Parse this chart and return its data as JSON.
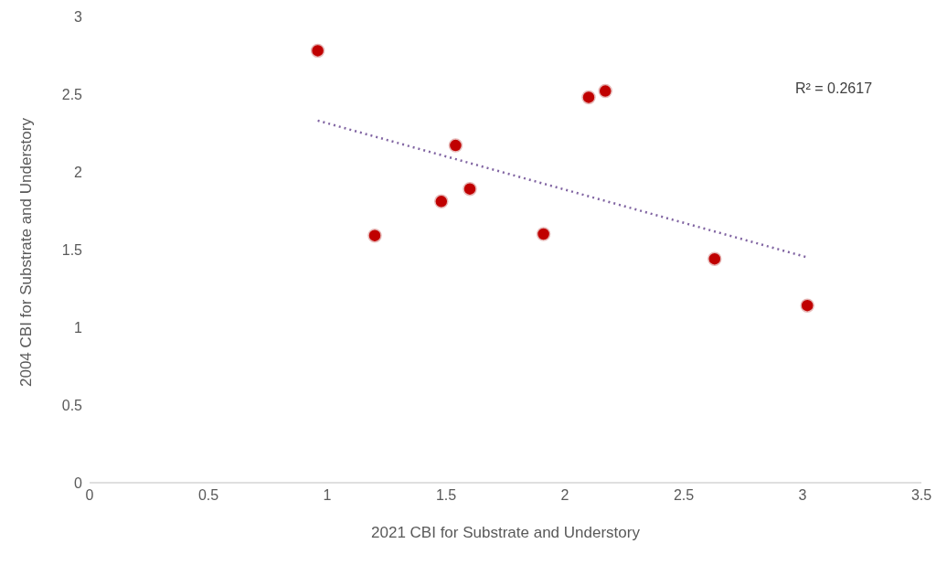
{
  "chart_data": {
    "type": "scatter",
    "xlabel": "2021 CBI for Substrate and Understory",
    "ylabel": "2004 CBI for Substrate and Understory",
    "annotations": [
      "R² = 0.2617"
    ],
    "series": [
      {
        "type": "scatter",
        "color": "#c00000",
        "marker": "circle",
        "x": [
          0.96,
          1.2,
          1.48,
          1.54,
          1.6,
          1.91,
          2.1,
          2.17,
          2.63,
          3.02
        ],
        "values": [
          2.78,
          1.59,
          1.81,
          2.17,
          1.89,
          1.6,
          2.48,
          2.52,
          1.44,
          1.14
        ]
      },
      {
        "type": "line",
        "color": "#8064a2",
        "line_style": "dotted",
        "marker": "none",
        "x": [
          0.96,
          3.02
        ],
        "values": [
          2.33,
          1.45
        ]
      }
    ],
    "xlim": [
      0,
      3.5
    ],
    "xticks": [
      0,
      0.5,
      1,
      1.5,
      2,
      2.5,
      3,
      3.5
    ],
    "ylim": [
      0,
      3
    ],
    "yticks": [
      0,
      0.5,
      1,
      1.5,
      2,
      2.5,
      3
    ],
    "grid": false
  }
}
